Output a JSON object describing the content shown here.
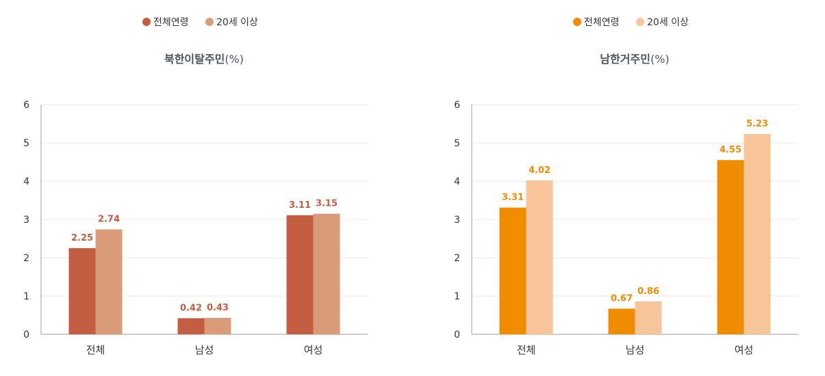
{
  "chart_data": [
    {
      "type": "bar",
      "title": "북한이탈주민",
      "unit": "(%)",
      "categories": [
        "전체",
        "남성",
        "여성"
      ],
      "series": [
        {
          "name": "전체연령",
          "values": [
            2.25,
            0.42,
            3.11
          ]
        },
        {
          "name": "20세 이상",
          "values": [
            2.74,
            0.43,
            3.15
          ]
        }
      ],
      "ylim": [
        0,
        6
      ],
      "yticks": [
        0,
        1,
        2,
        3,
        4,
        5,
        6
      ],
      "grid": true,
      "legend": "top-center",
      "colors": [
        "#c45e43",
        "#d99b79"
      ],
      "label_color": "#c45e43"
    },
    {
      "type": "bar",
      "title": "남한거주민",
      "unit": "(%)",
      "categories": [
        "전체",
        "남성",
        "여성"
      ],
      "series": [
        {
          "name": "전체연령",
          "values": [
            3.31,
            0.67,
            4.55
          ]
        },
        {
          "name": "20세 이상",
          "values": [
            4.02,
            0.86,
            5.23
          ]
        }
      ],
      "ylim": [
        0,
        6
      ],
      "yticks": [
        0,
        1,
        2,
        3,
        4,
        5,
        6
      ],
      "grid": true,
      "legend": "top-center",
      "colors": [
        "#f08c00",
        "#f8c59b"
      ],
      "label_color": "#f08c00"
    }
  ]
}
